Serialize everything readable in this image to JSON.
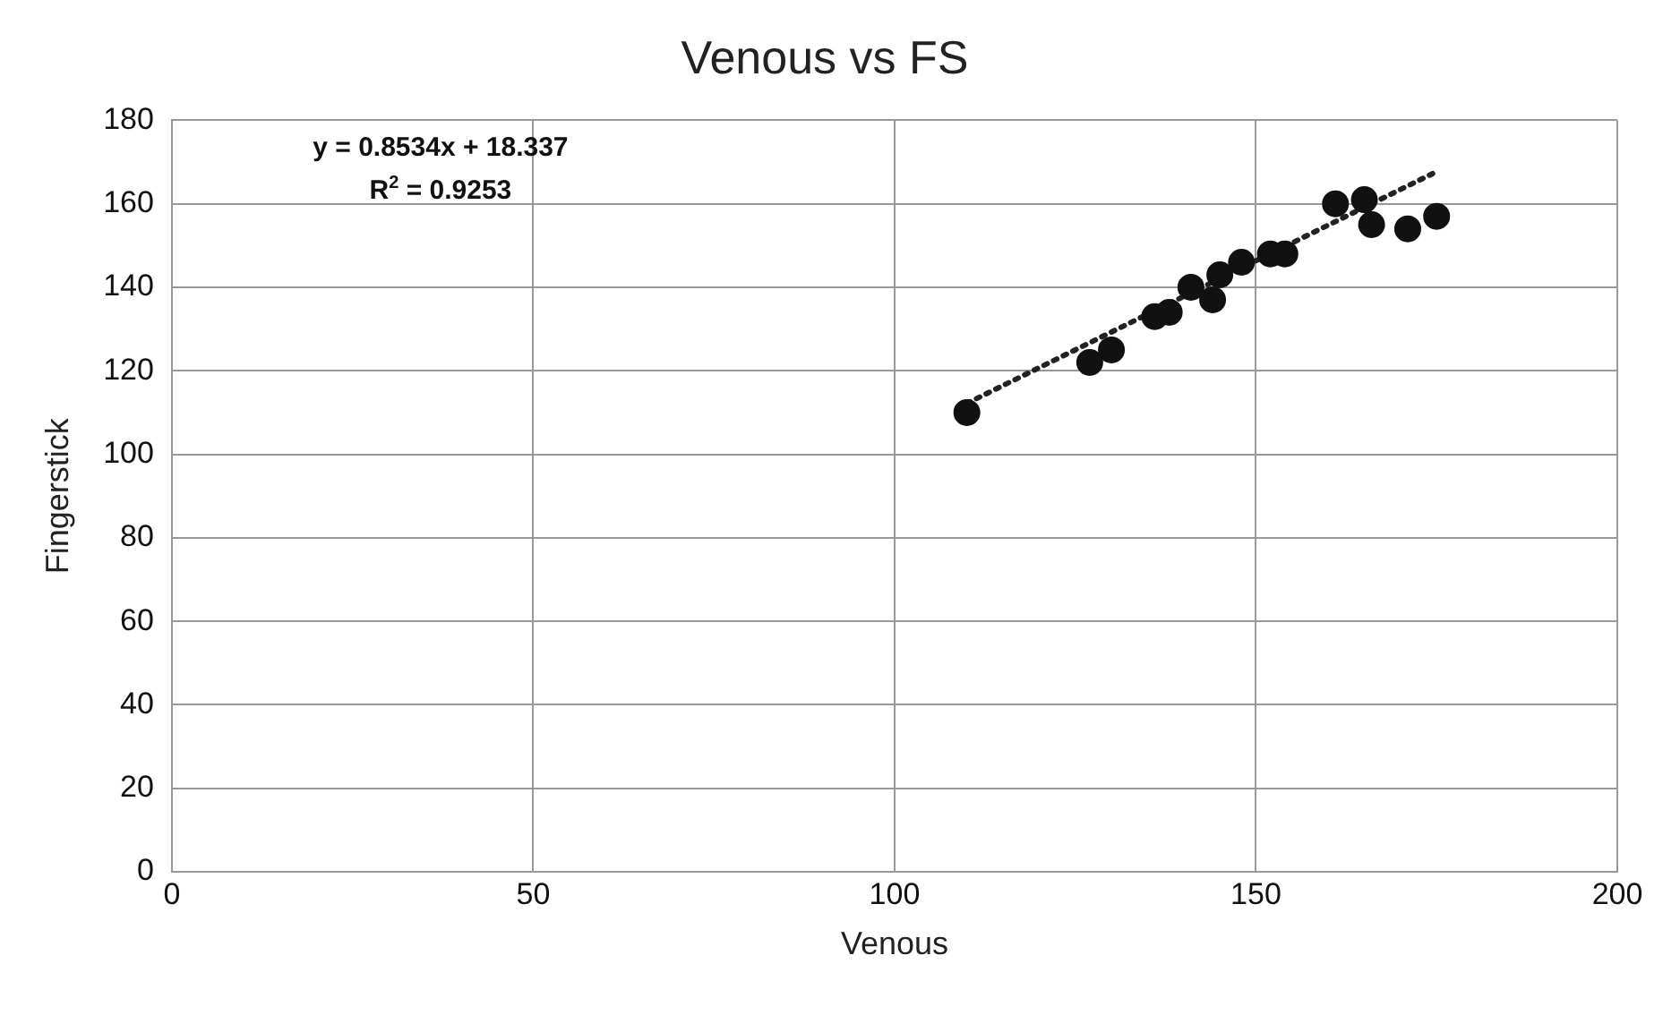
{
  "chart_data": {
    "type": "scatter",
    "title": "Venous vs FS",
    "xlabel": "Venous",
    "ylabel": "Fingerstick",
    "xlim": [
      0,
      200
    ],
    "xticks": [
      0,
      50,
      100,
      150,
      200
    ],
    "ylim": [
      0,
      180
    ],
    "yticks": [
      0,
      20,
      40,
      60,
      80,
      100,
      120,
      140,
      160,
      180
    ],
    "grid": true,
    "marker": "circle",
    "annotations": [
      "y = 0.8534x + 18.337",
      "R$^{2}$ = 0.9253"
    ],
    "series": [
      {
        "color": "#111111",
        "x": [
          110,
          127,
          130,
          136,
          138,
          141,
          144,
          145,
          148,
          152,
          154,
          161,
          165,
          166,
          171,
          175
        ],
        "values": [
          110,
          122,
          125,
          133,
          134,
          140,
          137,
          143,
          146,
          148,
          148,
          160,
          161,
          155,
          154,
          157
        ]
      },
      {
        "type": "line",
        "color": "#222222",
        "line_style": "dotted",
        "marker": "none",
        "x": [
          110,
          175
        ],
        "values": [
          112.2,
          167.7
        ]
      }
    ]
  }
}
